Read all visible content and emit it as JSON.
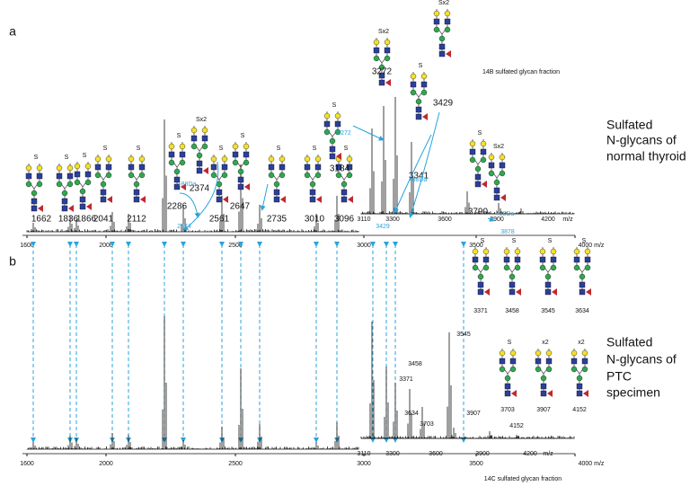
{
  "panels": [
    {
      "label": "a",
      "axis_ticks": [
        "1600",
        "2000",
        "2500",
        "3000",
        "3500",
        "4000 m/z"
      ],
      "peaks": [
        "1662",
        "1836",
        "1866",
        "2041",
        "2112",
        "2286",
        "2374",
        "2561",
        "2647",
        "2735",
        "3010",
        "3096"
      ],
      "glycan_tags": [
        "S",
        "S",
        "S",
        "S",
        "S",
        "S",
        "Sx2",
        "S",
        "S",
        "S",
        "S",
        "S",
        "S",
        "Sx2",
        "Sx2",
        "S",
        "S",
        "Sx2"
      ],
      "inset_ticks": [
        "3110",
        "3300",
        "3600",
        "3900",
        "4200",
        "m/z"
      ],
      "inset_labels": [
        "3184",
        "3272",
        "3341",
        "3429",
        "3790"
      ],
      "shift_labels": [
        "2374",
        "+88Da",
        "3272",
        "+88Da",
        "3429",
        "+88Da",
        "3878"
      ],
      "fraction": "14B sulfated glycan fraction",
      "caption": [
        "Sulfated",
        "N-glycans of",
        "normal thyroid"
      ]
    },
    {
      "label": "b",
      "axis_ticks": [
        "1600",
        "2000",
        "2500",
        "3000",
        "3500",
        "4000 m/z"
      ],
      "glycan_tags": [
        "S",
        "S",
        "S",
        "S",
        "S",
        "x2",
        "x2"
      ],
      "glycan_labels": [
        "3371",
        "3458",
        "3545",
        "3634",
        "3703",
        "3907",
        "4152"
      ],
      "inset_ticks": [
        "3110",
        "3300",
        "3600",
        "3900",
        "4200",
        "m/z"
      ],
      "inset_labels": [
        "3545",
        "3458",
        "3371",
        "3634",
        "3703",
        "3907",
        "4152"
      ],
      "fraction": "14C sulfated glycan fraction",
      "caption": [
        "Sulfated",
        "N-glycans of",
        "PTC",
        "specimen"
      ]
    }
  ]
}
